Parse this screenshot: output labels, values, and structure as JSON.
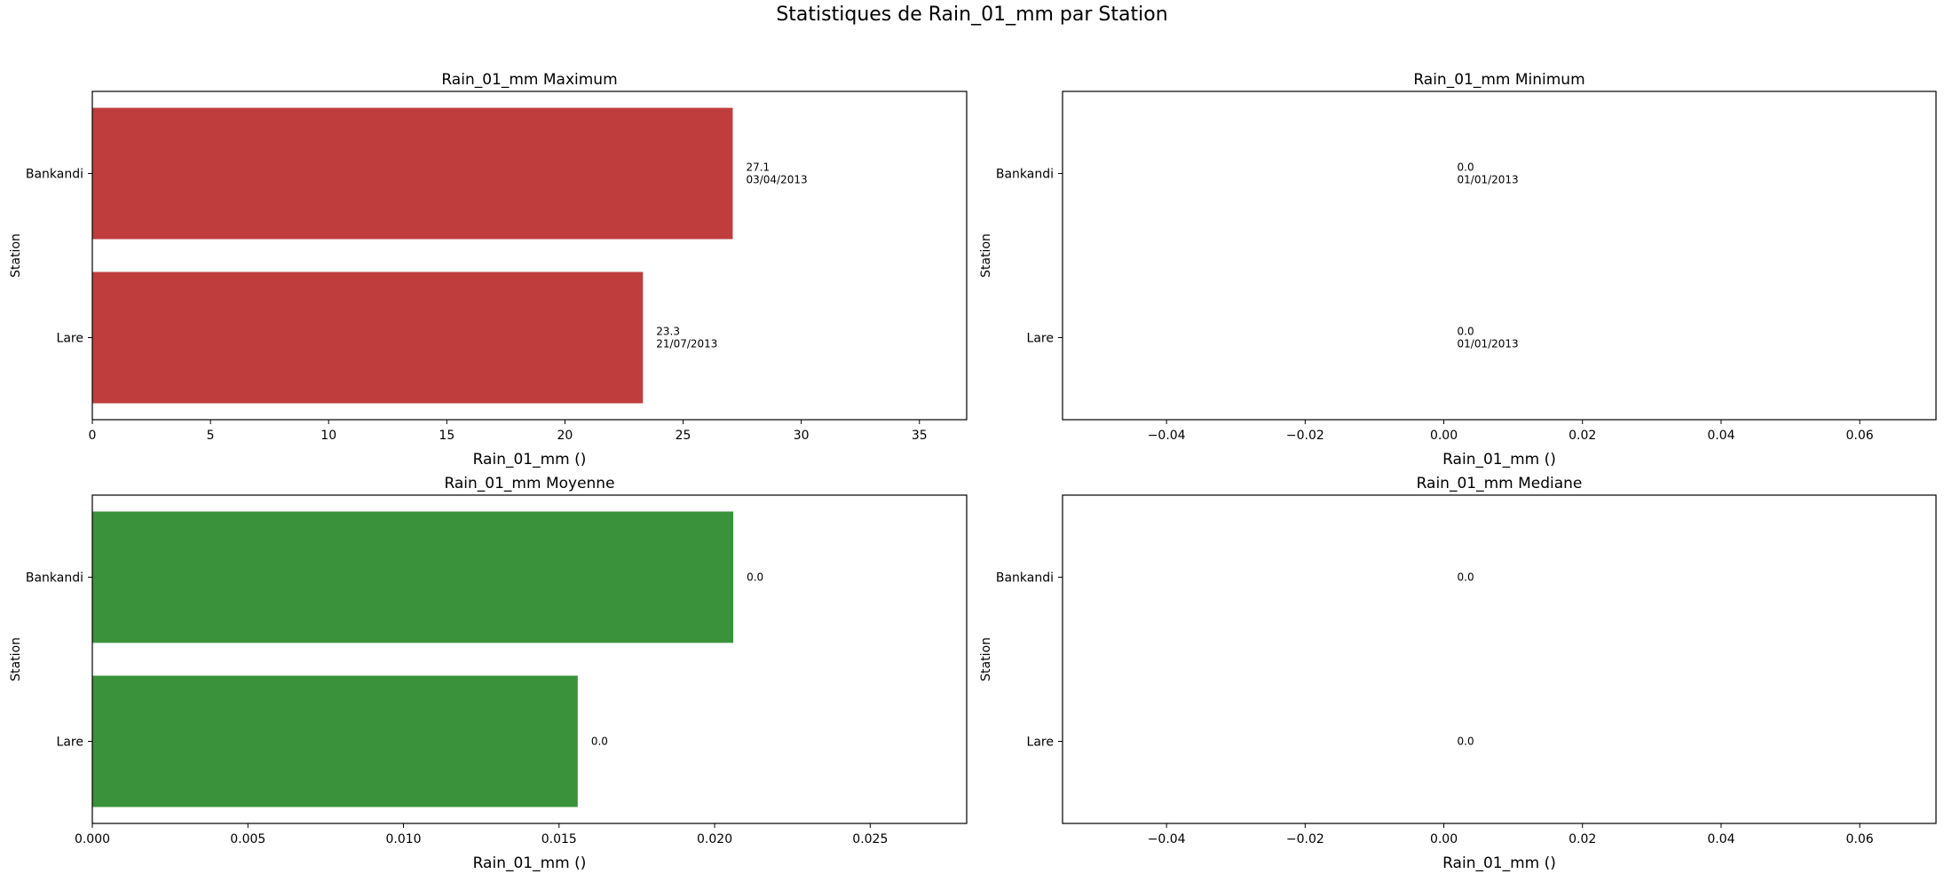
{
  "figure_title": "Statistiques de Rain_01_mm par Station",
  "chart_data": [
    {
      "type": "bar",
      "orientation": "horizontal",
      "title": "Rain_01_mm Maximum",
      "xlabel": "Rain_01_mm ()",
      "ylabel": "Station",
      "categories": [
        "Bankandi",
        "Lare"
      ],
      "values": [
        27.1,
        23.3
      ],
      "bar_labels": [
        "27.1\n03/04/2013",
        "23.3\n21/07/2013"
      ],
      "xlim": [
        0,
        37
      ],
      "xticks": [
        0,
        5,
        10,
        15,
        20,
        25,
        30,
        35
      ],
      "xtick_labels": [
        "0",
        "5",
        "10",
        "15",
        "20",
        "25",
        "30",
        "35"
      ],
      "color": "#c03d3e"
    },
    {
      "type": "bar",
      "orientation": "horizontal",
      "title": "Rain_01_mm Minimum",
      "xlabel": "Rain_01_mm ()",
      "ylabel": "Station",
      "categories": [
        "Bankandi",
        "Lare"
      ],
      "values": [
        0.0,
        0.0
      ],
      "bar_labels": [
        "0.0\n01/01/2013",
        "0.0\n01/01/2013"
      ],
      "xlim": [
        -0.055,
        0.071
      ],
      "xticks": [
        -0.04,
        -0.02,
        0.0,
        0.02,
        0.04,
        0.06
      ],
      "xtick_labels": [
        "−0.04",
        "−0.02",
        "0.00",
        "0.02",
        "0.04",
        "0.06"
      ],
      "color": "#3a75af"
    },
    {
      "type": "bar",
      "orientation": "horizontal",
      "title": "Rain_01_mm Moyenne",
      "xlabel": "Rain_01_mm ()",
      "ylabel": "Station",
      "categories": [
        "Bankandi",
        "Lare"
      ],
      "values": [
        0.0206,
        0.0156
      ],
      "bar_labels": [
        "0.0",
        "0.0"
      ],
      "xlim": [
        0,
        0.0281
      ],
      "xticks": [
        0,
        0.005,
        0.01,
        0.015,
        0.02,
        0.025
      ],
      "xtick_labels": [
        "0.000",
        "0.005",
        "0.010",
        "0.015",
        "0.020",
        "0.025"
      ],
      "color": "#3a923a"
    },
    {
      "type": "bar",
      "orientation": "horizontal",
      "title": "Rain_01_mm Mediane",
      "xlabel": "Rain_01_mm ()",
      "ylabel": "Station",
      "categories": [
        "Bankandi",
        "Lare"
      ],
      "values": [
        0.0,
        0.0
      ],
      "bar_labels": [
        "0.0",
        "0.0"
      ],
      "xlim": [
        -0.055,
        0.071
      ],
      "xticks": [
        -0.04,
        -0.02,
        0.0,
        0.02,
        0.04,
        0.06
      ],
      "xtick_labels": [
        "−0.04",
        "−0.02",
        "0.00",
        "0.02",
        "0.04",
        "0.06"
      ],
      "color": "#8e6bb5"
    }
  ]
}
